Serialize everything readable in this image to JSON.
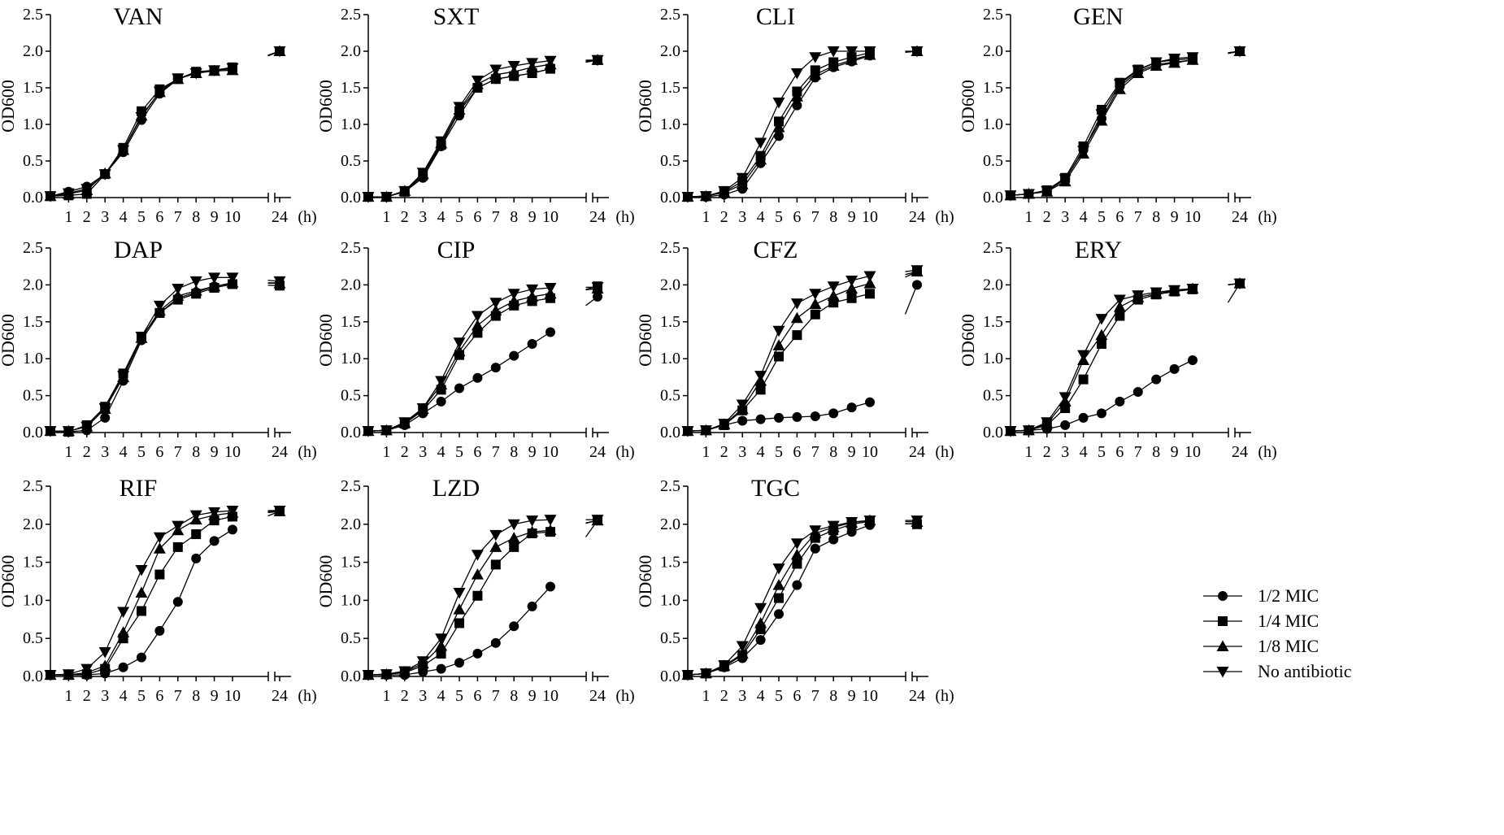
{
  "figure": {
    "y_axis_label": "OD600",
    "x_tick_labels": [
      "1",
      "2",
      "3",
      "4",
      "5",
      "6",
      "7",
      "8",
      "9",
      "10",
      "24"
    ],
    "x_unit": "(h)",
    "y_tick_labels": [
      "0.0",
      "0.5",
      "1.0",
      "1.5",
      "2.0",
      "2.5"
    ],
    "legend": [
      {
        "label": "1/2 MIC",
        "marker": "circle"
      },
      {
        "label": "1/4 MIC",
        "marker": "square"
      },
      {
        "label": "1/8 MIC",
        "marker": "triangle-up"
      },
      {
        "label": "No antibiotic",
        "marker": "triangle-down"
      }
    ]
  },
  "chart_data": [
    {
      "type": "line",
      "title": "VAN",
      "xlabel": "(h)",
      "ylabel": "OD600",
      "ylim": [
        0,
        2.5
      ],
      "x": [
        0,
        1,
        2,
        3,
        4,
        5,
        6,
        7,
        8,
        9,
        10,
        24
      ],
      "series": [
        {
          "name": "1/2 MIC",
          "values": [
            0.02,
            0.08,
            0.15,
            0.32,
            0.62,
            1.06,
            1.42,
            1.62,
            1.71,
            1.74,
            1.76,
            2.0
          ]
        },
        {
          "name": "1/4 MIC",
          "values": [
            0.02,
            0.03,
            0.05,
            0.32,
            0.68,
            1.18,
            1.48,
            1.62,
            1.72,
            1.74,
            1.78,
            2.0
          ]
        },
        {
          "name": "1/8 MIC",
          "values": [
            0.02,
            0.05,
            0.1,
            0.33,
            0.65,
            1.12,
            1.44,
            1.62,
            1.7,
            1.73,
            1.74,
            2.0
          ]
        },
        {
          "name": "No antibiotic",
          "values": [
            0.02,
            0.06,
            0.12,
            0.32,
            0.65,
            1.1,
            1.45,
            1.63,
            1.7,
            1.74,
            1.77,
            2.0
          ]
        }
      ]
    },
    {
      "type": "line",
      "title": "SXT",
      "xlabel": "(h)",
      "ylabel": "OD600",
      "ylim": [
        0,
        2.5
      ],
      "x": [
        0,
        1,
        2,
        3,
        4,
        5,
        6,
        7,
        8,
        9,
        10,
        24
      ],
      "series": [
        {
          "name": "1/2 MIC",
          "values": [
            0.01,
            0.01,
            0.08,
            0.27,
            0.7,
            1.12,
            1.5,
            1.62,
            1.66,
            1.7,
            1.76,
            1.88
          ]
        },
        {
          "name": "1/4 MIC",
          "values": [
            0.01,
            0.01,
            0.08,
            0.3,
            0.72,
            1.18,
            1.5,
            1.62,
            1.66,
            1.7,
            1.76,
            1.88
          ]
        },
        {
          "name": "1/8 MIC",
          "values": [
            0.01,
            0.01,
            0.09,
            0.32,
            0.74,
            1.2,
            1.55,
            1.68,
            1.72,
            1.78,
            1.82,
            1.88
          ]
        },
        {
          "name": "No antibiotic",
          "values": [
            0.01,
            0.01,
            0.09,
            0.34,
            0.77,
            1.24,
            1.6,
            1.75,
            1.8,
            1.84,
            1.87,
            1.88
          ]
        }
      ]
    },
    {
      "type": "line",
      "title": "CLI",
      "xlabel": "(h)",
      "ylabel": "OD600",
      "ylim": [
        0,
        2.5
      ],
      "x": [
        0,
        1,
        2,
        3,
        4,
        5,
        6,
        7,
        8,
        9,
        10,
        24
      ],
      "series": [
        {
          "name": "1/2 MIC",
          "values": [
            0.01,
            0.01,
            0.04,
            0.12,
            0.47,
            0.84,
            1.26,
            1.64,
            1.78,
            1.86,
            1.94,
            2.0
          ]
        },
        {
          "name": "1/4 MIC",
          "values": [
            0.01,
            0.02,
            0.08,
            0.22,
            0.57,
            1.04,
            1.45,
            1.74,
            1.85,
            1.92,
            1.98,
            2.0
          ]
        },
        {
          "name": "1/8 MIC",
          "values": [
            0.01,
            0.02,
            0.07,
            0.18,
            0.52,
            0.96,
            1.38,
            1.68,
            1.8,
            1.88,
            1.95,
            2.0
          ]
        },
        {
          "name": "No antibiotic",
          "values": [
            0.01,
            0.02,
            0.09,
            0.27,
            0.75,
            1.3,
            1.7,
            1.92,
            2.0,
            2.0,
            2.0,
            2.0
          ]
        }
      ]
    },
    {
      "type": "line",
      "title": "GEN",
      "xlabel": "(h)",
      "ylabel": "OD600",
      "ylim": [
        0,
        2.5
      ],
      "x": [
        0,
        1,
        2,
        3,
        4,
        5,
        6,
        7,
        8,
        9,
        10,
        24
      ],
      "series": [
        {
          "name": "1/2 MIC",
          "values": [
            0.03,
            0.05,
            0.09,
            0.25,
            0.65,
            1.08,
            1.52,
            1.72,
            1.82,
            1.85,
            1.88,
            2.0
          ]
        },
        {
          "name": "1/4 MIC",
          "values": [
            0.03,
            0.05,
            0.1,
            0.27,
            0.7,
            1.2,
            1.57,
            1.75,
            1.85,
            1.88,
            1.9,
            2.0
          ]
        },
        {
          "name": "1/8 MIC",
          "values": [
            0.03,
            0.05,
            0.08,
            0.22,
            0.6,
            1.05,
            1.48,
            1.7,
            1.8,
            1.84,
            1.88,
            2.0
          ]
        },
        {
          "name": "No antibiotic",
          "values": [
            0.03,
            0.05,
            0.09,
            0.25,
            0.64,
            1.14,
            1.55,
            1.74,
            1.85,
            1.9,
            1.92,
            2.0
          ]
        }
      ]
    },
    {
      "type": "line",
      "title": "DAP",
      "xlabel": "(h)",
      "ylabel": "OD600",
      "ylim": [
        0,
        2.5
      ],
      "x": [
        0,
        1,
        2,
        3,
        4,
        5,
        6,
        7,
        8,
        9,
        10,
        24
      ],
      "series": [
        {
          "name": "1/2 MIC",
          "values": [
            0.02,
            0.01,
            0.03,
            0.2,
            0.7,
            1.25,
            1.62,
            1.82,
            1.9,
            1.98,
            2.02,
            2.03
          ]
        },
        {
          "name": "1/4 MIC",
          "values": [
            0.02,
            0.01,
            0.1,
            0.35,
            0.8,
            1.3,
            1.62,
            1.8,
            1.88,
            1.96,
            2.01,
            1.99
          ]
        },
        {
          "name": "1/8 MIC",
          "values": [
            0.02,
            0.02,
            0.08,
            0.32,
            0.75,
            1.28,
            1.65,
            1.85,
            1.92,
            1.98,
            2.03,
            2.02
          ]
        },
        {
          "name": "No antibiotic",
          "values": [
            0.02,
            0.02,
            0.08,
            0.33,
            0.77,
            1.3,
            1.72,
            1.95,
            2.05,
            2.1,
            2.1,
            2.05
          ]
        }
      ]
    },
    {
      "type": "line",
      "title": "CIP",
      "xlabel": "(h)",
      "ylabel": "OD600",
      "ylim": [
        0,
        2.5
      ],
      "x": [
        0,
        1,
        2,
        3,
        4,
        5,
        6,
        7,
        8,
        9,
        10,
        24
      ],
      "series": [
        {
          "name": "1/2 MIC",
          "values": [
            0.02,
            0.03,
            0.1,
            0.26,
            0.42,
            0.6,
            0.74,
            0.88,
            1.04,
            1.2,
            1.36,
            1.84
          ]
        },
        {
          "name": "1/4 MIC",
          "values": [
            0.02,
            0.03,
            0.12,
            0.3,
            0.58,
            1.05,
            1.35,
            1.58,
            1.72,
            1.78,
            1.82,
            1.98
          ]
        },
        {
          "name": "1/8 MIC",
          "values": [
            0.02,
            0.03,
            0.13,
            0.32,
            0.65,
            1.1,
            1.45,
            1.65,
            1.78,
            1.84,
            1.88,
            1.95
          ]
        },
        {
          "name": "No antibiotic",
          "values": [
            0.02,
            0.03,
            0.14,
            0.33,
            0.7,
            1.22,
            1.58,
            1.76,
            1.88,
            1.94,
            1.96,
            1.97
          ]
        }
      ]
    },
    {
      "type": "line",
      "title": "CFZ",
      "xlabel": "(h)",
      "ylabel": "OD600",
      "ylim": [
        0,
        2.5
      ],
      "x": [
        0,
        1,
        2,
        3,
        4,
        5,
        6,
        7,
        8,
        9,
        10,
        24
      ],
      "series": [
        {
          "name": "1/2 MIC",
          "values": [
            0.02,
            0.03,
            0.1,
            0.16,
            0.18,
            0.2,
            0.21,
            0.22,
            0.26,
            0.34,
            0.41,
            2.0
          ]
        },
        {
          "name": "1/4 MIC",
          "values": [
            0.02,
            0.03,
            0.1,
            0.3,
            0.58,
            1.03,
            1.32,
            1.6,
            1.76,
            1.82,
            1.88,
            2.18
          ]
        },
        {
          "name": "1/8 MIC",
          "values": [
            0.02,
            0.03,
            0.11,
            0.32,
            0.7,
            1.18,
            1.55,
            1.74,
            1.85,
            1.95,
            2.02,
            2.18
          ]
        },
        {
          "name": "No antibiotic",
          "values": [
            0.02,
            0.03,
            0.12,
            0.38,
            0.77,
            1.38,
            1.75,
            1.88,
            1.98,
            2.06,
            2.12,
            2.2
          ]
        }
      ]
    },
    {
      "type": "line",
      "title": "ERY",
      "xlabel": "(h)",
      "ylabel": "OD600",
      "ylim": [
        0,
        2.5
      ],
      "x": [
        0,
        1,
        2,
        3,
        4,
        5,
        6,
        7,
        8,
        9,
        10,
        24
      ],
      "series": [
        {
          "name": "1/2 MIC",
          "values": [
            0.02,
            0.03,
            0.05,
            0.1,
            0.2,
            0.26,
            0.42,
            0.55,
            0.72,
            0.86,
            0.98,
            2.02
          ]
        },
        {
          "name": "1/4 MIC",
          "values": [
            0.02,
            0.03,
            0.1,
            0.33,
            0.72,
            1.2,
            1.58,
            1.8,
            1.87,
            1.91,
            1.94,
            2.02
          ]
        },
        {
          "name": "1/8 MIC",
          "values": [
            0.02,
            0.03,
            0.12,
            0.42,
            0.98,
            1.32,
            1.7,
            1.83,
            1.88,
            1.92,
            1.95,
            2.02
          ]
        },
        {
          "name": "No antibiotic",
          "values": [
            0.02,
            0.03,
            0.14,
            0.48,
            1.05,
            1.54,
            1.8,
            1.86,
            1.9,
            1.93,
            1.95,
            2.02
          ]
        }
      ]
    },
    {
      "type": "line",
      "title": "RIF",
      "xlabel": "(h)",
      "ylabel": "OD600",
      "ylim": [
        0,
        2.5
      ],
      "x": [
        0,
        1,
        2,
        3,
        4,
        5,
        6,
        7,
        8,
        9,
        10,
        24
      ],
      "series": [
        {
          "name": "1/2 MIC",
          "values": [
            0.02,
            0.02,
            0.02,
            0.04,
            0.12,
            0.25,
            0.6,
            0.98,
            1.55,
            1.78,
            1.93,
            2.17
          ]
        },
        {
          "name": "1/4 MIC",
          "values": [
            0.02,
            0.02,
            0.03,
            0.1,
            0.5,
            0.86,
            1.34,
            1.7,
            1.87,
            2.05,
            2.1,
            2.17
          ]
        },
        {
          "name": "1/8 MIC",
          "values": [
            0.02,
            0.02,
            0.05,
            0.14,
            0.58,
            1.1,
            1.68,
            1.92,
            2.06,
            2.12,
            2.15,
            2.17
          ]
        },
        {
          "name": "No antibiotic",
          "values": [
            0.02,
            0.03,
            0.1,
            0.32,
            0.85,
            1.4,
            1.83,
            1.98,
            2.12,
            2.16,
            2.18,
            2.18
          ]
        }
      ]
    },
    {
      "type": "line",
      "title": "LZD",
      "xlabel": "(h)",
      "ylabel": "OD600",
      "ylim": [
        0,
        2.5
      ],
      "x": [
        0,
        1,
        2,
        3,
        4,
        5,
        6,
        7,
        8,
        9,
        10,
        24
      ],
      "series": [
        {
          "name": "1/2 MIC",
          "values": [
            0.02,
            0.02,
            0.02,
            0.06,
            0.1,
            0.18,
            0.3,
            0.44,
            0.66,
            0.92,
            1.18,
            2.05
          ]
        },
        {
          "name": "1/4 MIC",
          "values": [
            0.02,
            0.03,
            0.05,
            0.14,
            0.3,
            0.7,
            1.06,
            1.47,
            1.7,
            1.88,
            1.9,
            2.05
          ]
        },
        {
          "name": "1/8 MIC",
          "values": [
            0.02,
            0.03,
            0.06,
            0.17,
            0.4,
            0.88,
            1.34,
            1.7,
            1.82,
            1.9,
            1.92,
            2.05
          ]
        },
        {
          "name": "No antibiotic",
          "values": [
            0.02,
            0.03,
            0.07,
            0.2,
            0.5,
            1.1,
            1.6,
            1.86,
            2.0,
            2.05,
            2.06,
            2.06
          ]
        }
      ]
    },
    {
      "type": "line",
      "title": "TGC",
      "xlabel": "(h)",
      "ylabel": "OD600",
      "ylim": [
        0,
        2.5
      ],
      "x": [
        0,
        1,
        2,
        3,
        4,
        5,
        6,
        7,
        8,
        9,
        10,
        24
      ],
      "series": [
        {
          "name": "1/2 MIC",
          "values": [
            0.02,
            0.04,
            0.12,
            0.24,
            0.48,
            0.82,
            1.2,
            1.68,
            1.8,
            1.9,
            1.99,
            2.01
          ]
        },
        {
          "name": "1/4 MIC",
          "values": [
            0.02,
            0.04,
            0.13,
            0.28,
            0.62,
            1.03,
            1.48,
            1.82,
            1.92,
            2.0,
            2.04,
            2.0
          ]
        },
        {
          "name": "1/8 MIC",
          "values": [
            0.02,
            0.04,
            0.14,
            0.3,
            0.7,
            1.2,
            1.6,
            1.88,
            1.96,
            2.02,
            2.05,
            2.03
          ]
        },
        {
          "name": "No antibiotic",
          "values": [
            0.02,
            0.04,
            0.15,
            0.4,
            0.9,
            1.42,
            1.75,
            1.92,
            1.98,
            2.03,
            2.05,
            2.05
          ]
        }
      ]
    }
  ]
}
